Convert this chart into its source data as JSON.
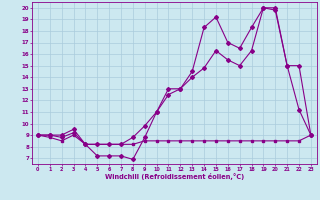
{
  "xlabel": "Windchill (Refroidissement éolien,°C)",
  "bg_color": "#cce8f0",
  "grid_color": "#aaccdd",
  "line_color": "#880088",
  "xlim": [
    -0.5,
    23.5
  ],
  "ylim": [
    6.5,
    20.5
  ],
  "yticks": [
    7,
    8,
    9,
    10,
    11,
    12,
    13,
    14,
    15,
    16,
    17,
    18,
    19,
    20
  ],
  "xticks": [
    0,
    1,
    2,
    3,
    4,
    5,
    6,
    7,
    8,
    9,
    10,
    11,
    12,
    13,
    14,
    15,
    16,
    17,
    18,
    19,
    20,
    21,
    22,
    23
  ],
  "s1_x": [
    0,
    1,
    2,
    3,
    4,
    5,
    6,
    7,
    8,
    9,
    10,
    11,
    12,
    13,
    14,
    15,
    16,
    17,
    18,
    19,
    20,
    21,
    22,
    23
  ],
  "s1_y": [
    9.0,
    9.0,
    8.8,
    9.2,
    8.2,
    7.2,
    7.2,
    7.2,
    6.9,
    8.8,
    11.0,
    13.0,
    13.0,
    14.5,
    18.3,
    19.2,
    17.0,
    16.5,
    18.3,
    20.0,
    20.0,
    15.0,
    11.2,
    9.0
  ],
  "s2_x": [
    0,
    1,
    2,
    3,
    4,
    5,
    6,
    7,
    8,
    9,
    10,
    11,
    12,
    13,
    14,
    15,
    16,
    17,
    18,
    19,
    20,
    21,
    22,
    23
  ],
  "s2_y": [
    9.0,
    9.0,
    9.0,
    9.5,
    8.2,
    8.2,
    8.2,
    8.2,
    8.8,
    9.8,
    11.0,
    12.5,
    13.0,
    14.0,
    14.8,
    16.3,
    15.5,
    15.0,
    16.3,
    20.0,
    19.8,
    15.0,
    15.0,
    9.0
  ],
  "s3_x": [
    0,
    1,
    2,
    3,
    4,
    5,
    6,
    7,
    8,
    9,
    10,
    11,
    12,
    13,
    14,
    15,
    16,
    17,
    18,
    19,
    20,
    21,
    22,
    23
  ],
  "s3_y": [
    9.0,
    8.8,
    8.5,
    9.0,
    8.2,
    8.2,
    8.2,
    8.2,
    8.2,
    8.5,
    8.5,
    8.5,
    8.5,
    8.5,
    8.5,
    8.5,
    8.5,
    8.5,
    8.5,
    8.5,
    8.5,
    8.5,
    8.5,
    9.0
  ]
}
